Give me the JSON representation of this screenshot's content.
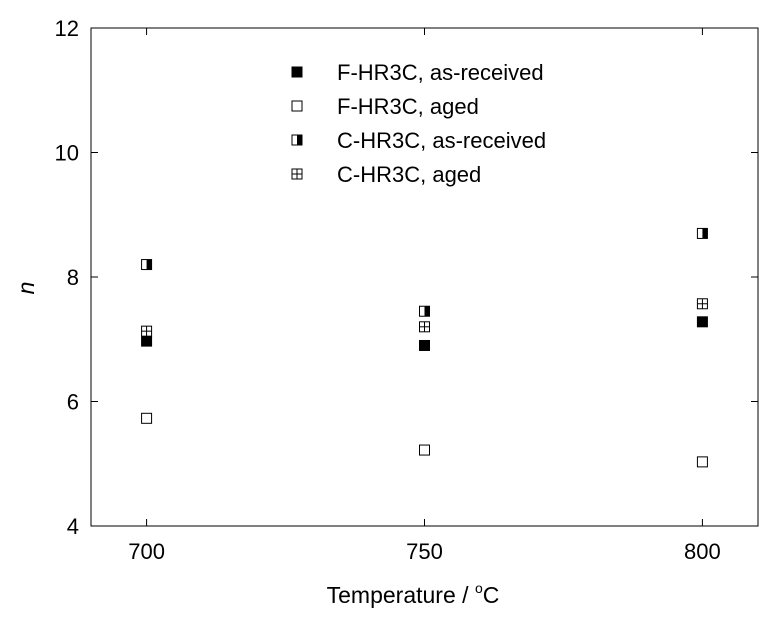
{
  "chart_data": {
    "type": "scatter",
    "title": "",
    "xlabel": "Temperature / ",
    "xlabel_sup": "o",
    "xlabel_unit": "C",
    "ylabel": "n",
    "xlim": [
      690,
      810
    ],
    "ylim": [
      4,
      12
    ],
    "xticks": [
      700,
      750,
      800
    ],
    "yticks": [
      4,
      6,
      8,
      10,
      12
    ],
    "grid": false,
    "legend_position": "top-center",
    "series": [
      {
        "name": "F-HR3C, as-received",
        "marker": "filled-square",
        "x": [
          700,
          750,
          800
        ],
        "y": [
          6.97,
          6.9,
          7.28
        ]
      },
      {
        "name": "F-HR3C, aged",
        "marker": "open-square",
        "x": [
          700,
          750,
          800
        ],
        "y": [
          5.73,
          5.22,
          5.03
        ]
      },
      {
        "name": "C-HR3C, as-received",
        "marker": "half-filled-square",
        "x": [
          700,
          750,
          800
        ],
        "y": [
          8.2,
          7.45,
          8.7
        ]
      },
      {
        "name": "C-HR3C, aged",
        "marker": "crossed-square",
        "x": [
          700,
          750,
          800
        ],
        "y": [
          7.13,
          7.2,
          7.57
        ]
      }
    ]
  }
}
